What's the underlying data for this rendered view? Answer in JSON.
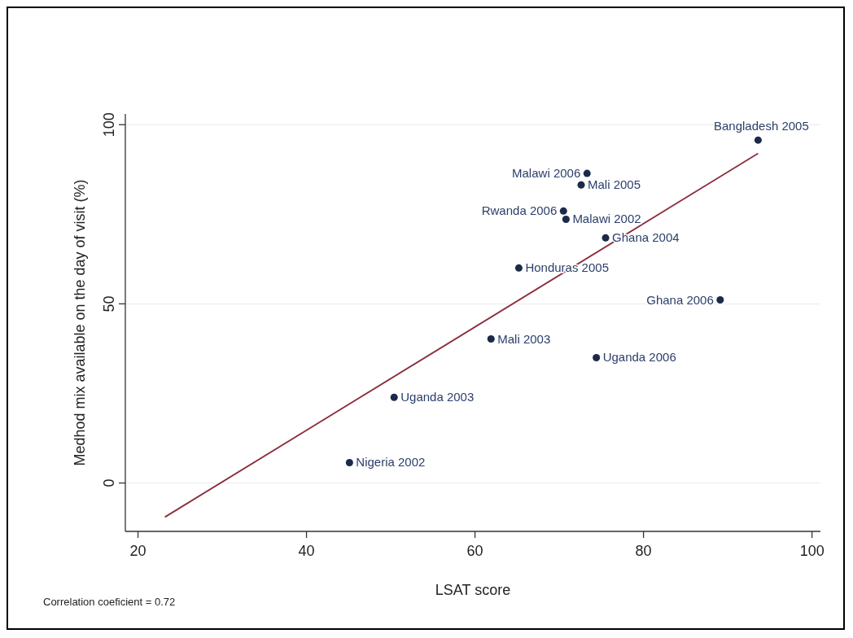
{
  "chart_data": {
    "type": "scatter",
    "xlabel": "LSAT score",
    "ylabel": "Medhod mix available on the day of visit (%)",
    "xlim": [
      18.5,
      101
    ],
    "xticks": [
      20,
      40,
      60,
      80,
      100
    ],
    "ylim": [
      -13.5,
      103
    ],
    "yticks": [
      0,
      50,
      100
    ],
    "grid": "y",
    "series": [
      {
        "marker": "circle",
        "color": "#1b2a48",
        "x": [
          93.6,
          73.3,
          72.6,
          70.5,
          70.8,
          75.5,
          65.2,
          89.1,
          61.9,
          74.4,
          50.4,
          45.1
        ],
        "values": [
          95.7,
          86.4,
          83.2,
          75.9,
          73.6,
          68.4,
          60.0,
          51.1,
          40.2,
          35.0,
          23.9,
          5.7
        ]
      },
      {
        "type": "line",
        "color": "#8b2d3c",
        "x": [
          23.2,
          93.6
        ],
        "values": [
          -9.5,
          92.0
        ]
      }
    ],
    "annotations": [
      {
        "text": "Bangladesh 2005",
        "x": 93.6,
        "y": 95.7
      },
      {
        "text": "Malawi 2006",
        "x": 73.3,
        "y": 86.4
      },
      {
        "text": "Mali 2005",
        "x": 72.6,
        "y": 83.2
      },
      {
        "text": "Rwanda 2006",
        "x": 70.5,
        "y": 75.9
      },
      {
        "text": "Malawi 2002",
        "x": 70.8,
        "y": 73.6
      },
      {
        "text": "Ghana 2004",
        "x": 75.5,
        "y": 68.4
      },
      {
        "text": "Honduras 2005",
        "x": 65.2,
        "y": 60.0
      },
      {
        "text": "Ghana 2006",
        "x": 89.1,
        "y": 51.1
      },
      {
        "text": "Mali 2003",
        "x": 61.9,
        "y": 40.2
      },
      {
        "text": "Uganda 2006",
        "x": 74.4,
        "y": 35.0
      },
      {
        "text": "Uganda 2003",
        "x": 50.4,
        "y": 23.9
      },
      {
        "text": "Nigeria 2002",
        "x": 45.1,
        "y": 5.7
      },
      "Correlation coeficient = 0.72"
    ]
  }
}
